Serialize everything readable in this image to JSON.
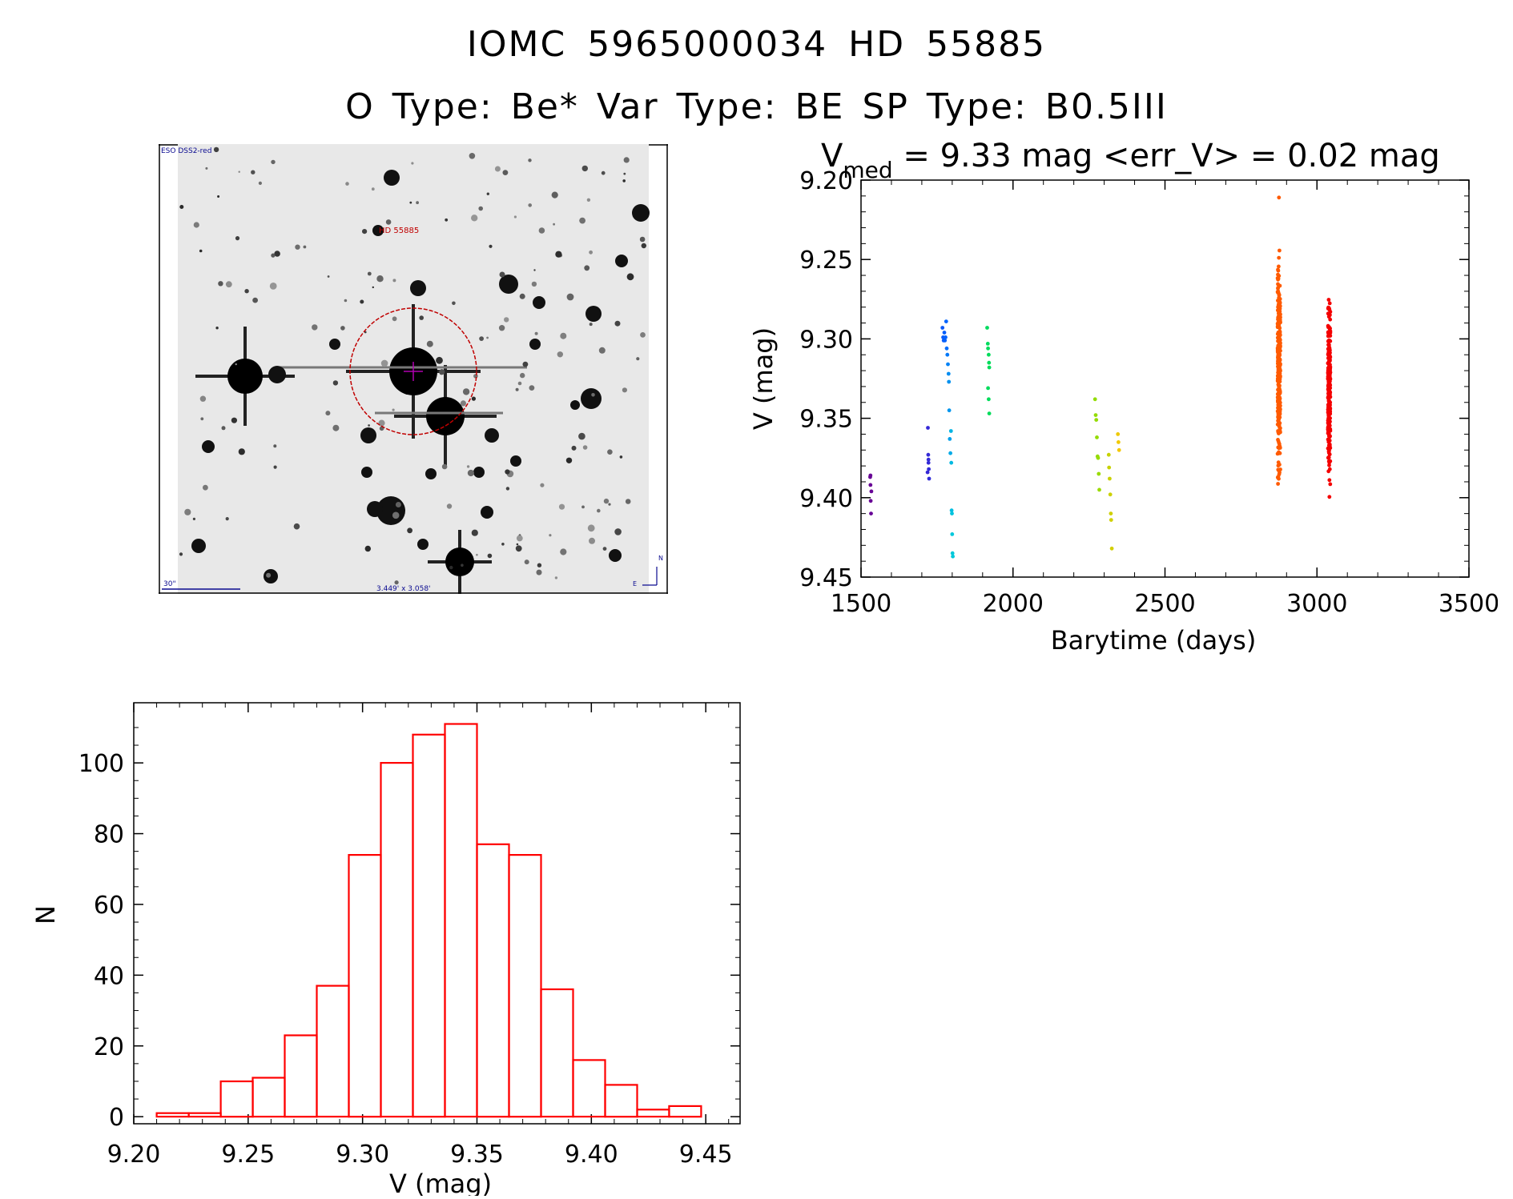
{
  "header": {
    "title_line1": "IOMC 5965000034    HD  55885",
    "title_line2": "O Type: Be*   Var Type: BE   SP Type: B0.5III"
  },
  "finder": {
    "survey_label": "ESO DSS2-red",
    "target_label": "HD 55885",
    "scale_label": "30\"",
    "fov_label": "3.449' x 3.058'",
    "north_label": "N",
    "east_label": "E",
    "colors": {
      "annotation": "#0a0a90",
      "target": "#c00000",
      "crosshair": "#b000b0"
    }
  },
  "chart_data": [
    {
      "id": "light-curve",
      "type": "scatter",
      "title_prefix": "V",
      "title_sub": "med",
      "title_rest": " = 9.33 mag <err_V> = 0.02 mag",
      "xlabel": "Barytime (days)",
      "ylabel": "V (mag)",
      "xlim": [
        1500,
        3500
      ],
      "ylim": [
        9.45,
        9.2
      ],
      "y_inverted": true,
      "xticks": [
        1500,
        2000,
        2500,
        3000,
        3500
      ],
      "yticks": [
        "9.20",
        "9.25",
        "9.30",
        "9.35",
        "9.40",
        "9.45"
      ],
      "points": [
        [
          1530,
          9.387
        ],
        [
          1531,
          9.392
        ],
        [
          1532,
          9.402
        ],
        [
          1533,
          9.41
        ],
        [
          1534,
          9.396
        ],
        [
          1531,
          9.386
        ],
        [
          1720,
          9.356
        ],
        [
          1721,
          9.373
        ],
        [
          1722,
          9.376
        ],
        [
          1723,
          9.382
        ],
        [
          1724,
          9.388
        ],
        [
          1719,
          9.384
        ],
        [
          1722,
          9.378
        ],
        [
          1768,
          9.293
        ],
        [
          1770,
          9.299
        ],
        [
          1772,
          9.301
        ],
        [
          1774,
          9.296
        ],
        [
          1776,
          9.301
        ],
        [
          1778,
          9.299
        ],
        [
          1780,
          9.289
        ],
        [
          1782,
          9.306
        ],
        [
          1784,
          9.31
        ],
        [
          1786,
          9.316
        ],
        [
          1788,
          9.322
        ],
        [
          1789,
          9.327
        ],
        [
          1790,
          9.345
        ],
        [
          1792,
          9.363
        ],
        [
          1794,
          9.372
        ],
        [
          1796,
          9.358
        ],
        [
          1797,
          9.378
        ],
        [
          1798,
          9.408
        ],
        [
          1799,
          9.41
        ],
        [
          1800,
          9.423
        ],
        [
          1801,
          9.435
        ],
        [
          1802,
          9.437
        ],
        [
          1915,
          9.293
        ],
        [
          1917,
          9.303
        ],
        [
          1918,
          9.306
        ],
        [
          1920,
          9.31
        ],
        [
          1921,
          9.315
        ],
        [
          1922,
          9.318
        ],
        [
          1918,
          9.331
        ],
        [
          1920,
          9.338
        ],
        [
          1922,
          9.347
        ],
        [
          2270,
          9.338
        ],
        [
          2272,
          9.348
        ],
        [
          2274,
          9.351
        ],
        [
          2276,
          9.362
        ],
        [
          2278,
          9.374
        ],
        [
          2280,
          9.375
        ],
        [
          2282,
          9.385
        ],
        [
          2284,
          9.395
        ],
        [
          2315,
          9.373
        ],
        [
          2316,
          9.381
        ],
        [
          2318,
          9.388
        ],
        [
          2320,
          9.398
        ],
        [
          2322,
          9.41
        ],
        [
          2323,
          9.414
        ],
        [
          2325,
          9.432
        ],
        [
          2345,
          9.36
        ],
        [
          2347,
          9.365
        ],
        [
          2349,
          9.37
        ]
      ],
      "dense_clusters": [
        {
          "x": 2875,
          "x_spread": 9,
          "y_min": 9.23,
          "y_max": 9.403,
          "y_extra": [
            9.211
          ],
          "count": 300,
          "color": "#ff5a00"
        },
        {
          "x": 3040,
          "x_spread": 8,
          "y_min": 9.257,
          "y_max": 9.406,
          "y_extra": [],
          "count": 260,
          "color": "#f40000"
        }
      ]
    },
    {
      "id": "histogram",
      "type": "bar",
      "xlabel": "V (mag)",
      "ylabel": "N",
      "xlim": [
        9.2,
        9.465
      ],
      "ylim": [
        -2,
        117
      ],
      "xticks": [
        "9.20",
        "9.25",
        "9.30",
        "9.35",
        "9.40",
        "9.45"
      ],
      "yticks": [
        0,
        20,
        40,
        60,
        80,
        100
      ],
      "bin_width": 0.014,
      "bin_starts": [
        9.21,
        9.224,
        9.238,
        9.252,
        9.266,
        9.28,
        9.294,
        9.308,
        9.322,
        9.336,
        9.35,
        9.364,
        9.378,
        9.392,
        9.406,
        9.42,
        9.434
      ],
      "counts": [
        1,
        1,
        10,
        11,
        23,
        37,
        74,
        100,
        108,
        111,
        77,
        74,
        36,
        16,
        9,
        2,
        3
      ],
      "bar_color": "#ff0000"
    }
  ]
}
